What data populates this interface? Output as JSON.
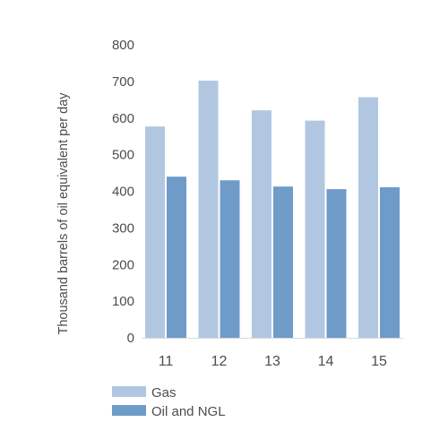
{
  "chart_data": {
    "type": "bar",
    "title": "",
    "xlabel": "",
    "ylabel": "Thousand barrels of oil equivalent per day",
    "categories": [
      "11",
      "12",
      "13",
      "14",
      "15"
    ],
    "ylim": [
      0,
      800
    ],
    "yticks": [
      0,
      100,
      200,
      300,
      400,
      500,
      600,
      700,
      800
    ],
    "grid": false,
    "legend_position": "bottom-left",
    "series": [
      {
        "name": "Gas",
        "color": "#b1c7e1",
        "values": [
          577,
          702,
          621,
          593,
          657
        ]
      },
      {
        "name": "Oil and NGL",
        "color": "#6f9bc8",
        "values": [
          440,
          430,
          413,
          406,
          411
        ]
      }
    ]
  }
}
